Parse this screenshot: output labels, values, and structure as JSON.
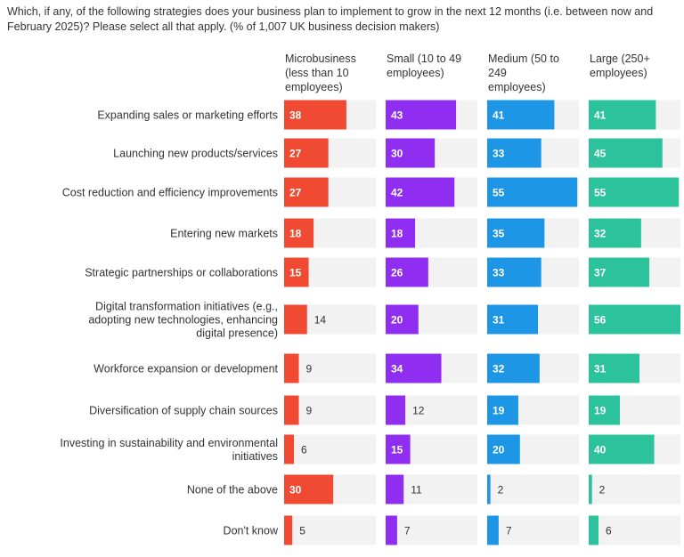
{
  "chart_data": {
    "type": "bar",
    "title": "Which, if any, of the following strategies does your business plan to implement to grow in the next 12 months (i.e. between now and February 2025)? Please select all that apply. (% of 1,007 UK business decision makers)",
    "categories": [
      [
        "Expanding sales or marketing efforts"
      ],
      [
        "Launching new products/services"
      ],
      [
        "Cost reduction and efficiency improvements"
      ],
      [
        "Entering new markets"
      ],
      [
        "Strategic partnerships or collaborations"
      ],
      [
        "Digital transformation initiatives (e.g.,",
        "adopting new technologies, enhancing",
        "digital presence)"
      ],
      [
        "Workforce expansion or development"
      ],
      [
        "Diversification of supply chain sources"
      ],
      [
        "Investing in sustainability and environmental",
        "initiatives"
      ],
      [
        "None of the above"
      ],
      [
        "Don't know"
      ]
    ],
    "series": [
      {
        "name": [
          "Microbusiness",
          "(less than 10",
          "employees)"
        ],
        "color": "#f04a33",
        "values": [
          38,
          27,
          27,
          18,
          15,
          14,
          9,
          9,
          6,
          30,
          5
        ]
      },
      {
        "name": [
          "Small (10 to 49",
          "employees)"
        ],
        "color": "#8f2ef0",
        "values": [
          43,
          30,
          42,
          18,
          26,
          20,
          34,
          12,
          15,
          11,
          7
        ]
      },
      {
        "name": [
          "Medium (50 to",
          "249",
          "employees)"
        ],
        "color": "#1e96e6",
        "values": [
          41,
          33,
          55,
          35,
          33,
          31,
          32,
          19,
          20,
          2,
          7
        ]
      },
      {
        "name": [
          "Large (250+",
          "employees)"
        ],
        "color": "#2cc29c",
        "values": [
          41,
          45,
          55,
          32,
          37,
          56,
          31,
          19,
          40,
          2,
          6
        ]
      }
    ],
    "xlim": [
      0,
      56
    ],
    "track_color": "#f2f2f2"
  }
}
